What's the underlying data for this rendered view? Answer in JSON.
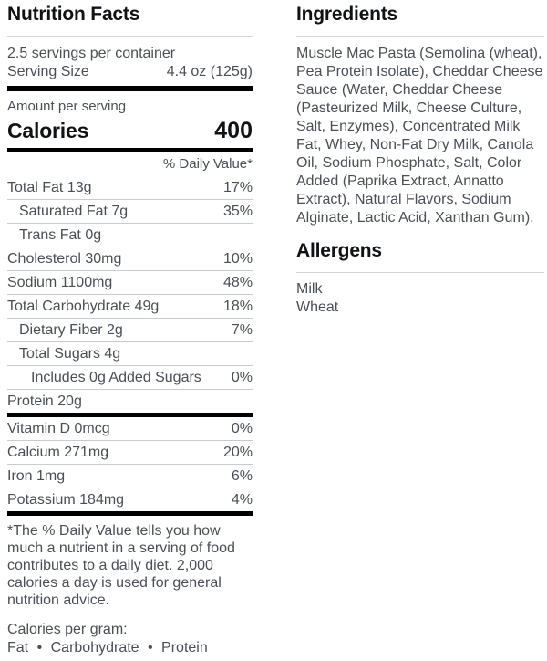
{
  "colors": {
    "heading_text": "#101214",
    "body_text": "#4a4f56",
    "divider": "#d3d5d7",
    "bar": "#000000",
    "background": "#ffffff"
  },
  "nutrition": {
    "title": "Nutrition Facts",
    "servings_per_container": "2.5 servings per container",
    "serving_size_label": "Serving Size",
    "serving_size_value": "4.4 oz (125g)",
    "amount_per_serving": "Amount per serving",
    "calories_label": "Calories",
    "calories_value": "400",
    "daily_value_header": "% Daily Value*",
    "rows": [
      {
        "label": "Total Fat 13g",
        "dv": "17%"
      },
      {
        "label": "Saturated Fat 7g",
        "dv": "35%"
      },
      {
        "label": "Trans Fat 0g",
        "dv": ""
      },
      {
        "label": "Cholesterol 30mg",
        "dv": "10%"
      },
      {
        "label": "Sodium 1100mg",
        "dv": "48%"
      },
      {
        "label": "Total Carbohydrate 49g",
        "dv": "18%"
      },
      {
        "label": "Dietary Fiber 2g",
        "dv": "7%"
      },
      {
        "label": "Total Sugars 4g",
        "dv": ""
      },
      {
        "label": "Includes 0g Added Sugars",
        "dv": "0%"
      },
      {
        "label": "Protein 20g",
        "dv": ""
      }
    ],
    "vitamins": [
      {
        "label": "Vitamin D 0mcg",
        "dv": "0%"
      },
      {
        "label": "Calcium 271mg",
        "dv": "20%"
      },
      {
        "label": "Iron 1mg",
        "dv": "6%"
      },
      {
        "label": "Potassium 184mg",
        "dv": "4%"
      }
    ],
    "footnote": "*The % Daily Value tells you how much a nutrient in a serving of food contributes to a daily diet. 2,000 calories a day is used for general nutrition advice.",
    "calories_per_gram_label": "Calories per gram:",
    "calories_per_gram_items": "Fat • Carbohydrate • Protein"
  },
  "ingredients": {
    "title": "Ingredients",
    "text": "Muscle Mac Pasta (Semolina (wheat), Pea Protein Isolate), Cheddar Cheese Sauce (Water, Cheddar Cheese (Pasteurized Milk, Cheese Culture, Salt, Enzymes), Concentrated Milk Fat, Whey, Non-Fat Dry Milk, Canola Oil, Sodium Phosphate, Salt, Color Added (Paprika Extract, Annatto Extract), Natural Flavors, Sodium Alginate, Lactic Acid, Xanthan Gum)."
  },
  "allergens": {
    "title": "Allergens",
    "items": [
      "Milk",
      "Wheat"
    ]
  }
}
